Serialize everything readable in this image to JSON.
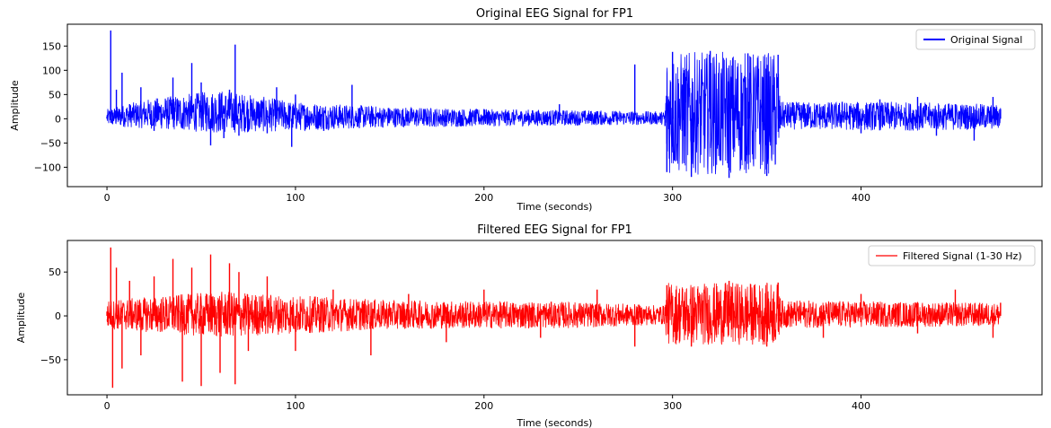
{
  "chart_data": [
    {
      "type": "line",
      "title": "Original EEG Signal for FP1",
      "xlabel": "Time (seconds)",
      "ylabel": "Amplitude",
      "xlim": [
        -21,
        496
      ],
      "ylim": [
        -140,
        195
      ],
      "xticks": [
        0,
        100,
        200,
        300,
        400
      ],
      "yticks": [
        -100,
        -50,
        0,
        50,
        100,
        150
      ],
      "legend_placement": "top-right",
      "grid": false,
      "series": [
        {
          "name": "Original Signal",
          "color": "#0000ff",
          "x": [
            0,
            2,
            3,
            5,
            8,
            12,
            18,
            25,
            32,
            35,
            40,
            45,
            50,
            55,
            60,
            62,
            65,
            68,
            70,
            75,
            80,
            85,
            90,
            98,
            100,
            105,
            115,
            130,
            150,
            160,
            180,
            200,
            220,
            240,
            260,
            280,
            296,
            297,
            300,
            310,
            320,
            330,
            340,
            350,
            356,
            357,
            370,
            380,
            390,
            400,
            410,
            420,
            430,
            440,
            450,
            460,
            470,
            474
          ],
          "y": [
            5,
            182,
            -10,
            60,
            95,
            30,
            65,
            -25,
            20,
            85,
            -20,
            115,
            75,
            -55,
            40,
            -40,
            60,
            153,
            -35,
            20,
            25,
            -30,
            65,
            -58,
            50,
            20,
            -25,
            70,
            20,
            15,
            -15,
            20,
            10,
            30,
            15,
            112,
            -15,
            -110,
            138,
            -120,
            140,
            -122,
            135,
            -118,
            132,
            -20,
            30,
            25,
            35,
            -30,
            40,
            25,
            45,
            -35,
            30,
            -45,
            45,
            20
          ],
          "annotations": [
            {
              "x": 0,
              "amp_max": 20,
              "amp_min": -15
            },
            {
              "x": 20,
              "amp_max": 40,
              "amp_min": -20
            },
            {
              "x": 60,
              "amp_max": 60,
              "amp_min": -30
            },
            {
              "x": 100,
              "amp_max": 35,
              "amp_min": -25
            },
            {
              "x": 150,
              "amp_max": 25,
              "amp_min": -18
            },
            {
              "x": 200,
              "amp_max": 20,
              "amp_min": -16
            },
            {
              "x": 250,
              "amp_max": 18,
              "amp_min": -14
            },
            {
              "x": 296,
              "amp_max": 15,
              "amp_min": -12
            },
            {
              "x": 297,
              "amp_max": 138,
              "amp_min": -115
            },
            {
              "x": 356,
              "amp_max": 138,
              "amp_min": -115
            },
            {
              "x": 357,
              "amp_max": 35,
              "amp_min": -22
            },
            {
              "x": 420,
              "amp_max": 35,
              "amp_min": -25
            },
            {
              "x": 474,
              "amp_max": 30,
              "amp_min": -22
            }
          ]
        }
      ]
    },
    {
      "type": "line",
      "title": "Filtered EEG Signal for FP1",
      "xlabel": "Time (seconds)",
      "ylabel": "Amplitude",
      "xlim": [
        -21,
        496
      ],
      "ylim": [
        -90,
        86
      ],
      "xticks": [
        0,
        100,
        200,
        300,
        400
      ],
      "yticks": [
        -50,
        0,
        50
      ],
      "legend_placement": "top-right",
      "grid": false,
      "series": [
        {
          "name": "Filtered Signal (1-30 Hz)",
          "color": "#ff0000",
          "x": [
            0,
            2,
            3,
            5,
            8,
            12,
            18,
            25,
            35,
            40,
            45,
            50,
            55,
            60,
            65,
            68,
            70,
            75,
            85,
            100,
            120,
            140,
            160,
            180,
            200,
            230,
            260,
            280,
            296,
            297,
            310,
            330,
            350,
            356,
            357,
            380,
            400,
            430,
            450,
            470,
            474
          ],
          "y": [
            5,
            78,
            -82,
            55,
            -60,
            40,
            -45,
            45,
            65,
            -75,
            55,
            -80,
            70,
            -65,
            60,
            -78,
            50,
            -40,
            45,
            -40,
            30,
            -45,
            25,
            -30,
            30,
            -25,
            30,
            -35,
            10,
            35,
            -35,
            40,
            -35,
            38,
            20,
            -25,
            25,
            -20,
            30,
            -25,
            15
          ],
          "annotations": [
            {
              "x": 0,
              "amp_max": 18,
              "amp_min": -15
            },
            {
              "x": 60,
              "amp_max": 28,
              "amp_min": -25
            },
            {
              "x": 150,
              "amp_max": 18,
              "amp_min": -15
            },
            {
              "x": 250,
              "amp_max": 16,
              "amp_min": -14
            },
            {
              "x": 296,
              "amp_max": 12,
              "amp_min": -10
            },
            {
              "x": 297,
              "amp_max": 38,
              "amp_min": -33
            },
            {
              "x": 356,
              "amp_max": 38,
              "amp_min": -33
            },
            {
              "x": 357,
              "amp_max": 18,
              "amp_min": -14
            },
            {
              "x": 474,
              "amp_max": 15,
              "amp_min": -12
            }
          ]
        }
      ]
    }
  ]
}
